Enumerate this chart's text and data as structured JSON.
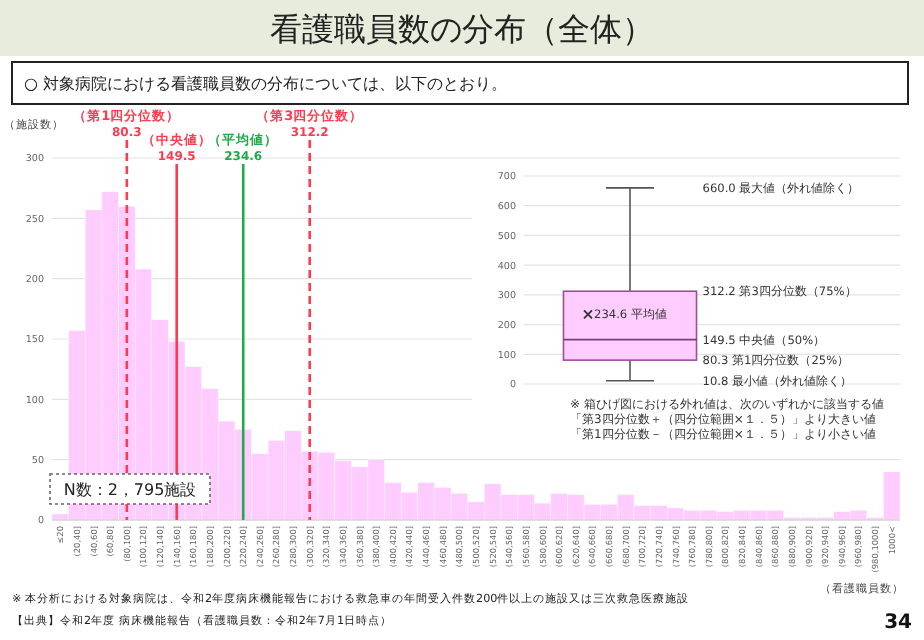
{
  "chart_data": [
    {
      "type": "bar",
      "title": "看護職員数の分布（全体）",
      "subtitle": "○ 対象病院における看護職員数の分布については、以下のとおり。",
      "ylabel": "（施設数）",
      "xlabel": "（看護職員数）",
      "color": "#ffccff",
      "values": [
        5,
        157,
        257,
        272,
        260,
        208,
        166,
        148,
        127,
        109,
        82,
        75,
        55,
        66,
        74,
        57,
        56,
        49,
        44,
        50,
        31,
        23,
        31,
        27,
        22,
        15,
        30,
        21,
        21,
        14,
        22,
        21,
        13,
        13,
        21,
        12,
        12,
        10,
        8,
        8,
        7,
        8,
        8,
        8,
        2,
        2,
        2,
        7,
        8,
        2,
        40
      ],
      "categories": [
        "≤20",
        "(20,40]",
        "(40,60]",
        "(60,80]",
        "(80,100]",
        "(100,120]",
        "(120,140]",
        "(140,160]",
        "(160,180]",
        "(180,200]",
        "(200,220]",
        "(220,240]",
        "(240,260]",
        "(260,280]",
        "(280,300]",
        "(300,320]",
        "(320,340]",
        "(340,360]",
        "(360,380]",
        "(380,400]",
        "(400,420]",
        "(420,440]",
        "(440,460]",
        "(460,480]",
        "(480,500]",
        "(500,520]",
        "(520,540]",
        "(540,560]",
        "(560,580]",
        "(580,600]",
        "(600,620]",
        "(620,640]",
        "(640,660]",
        "(660,680]",
        "(680,700]",
        "(700,720]",
        "(720,740]",
        "(740,760]",
        "(760,780]",
        "(780,800]",
        "(800,820]",
        "(820,840]",
        "(840,860]",
        "(860,880]",
        "(880,900]",
        "(900,920]",
        "(920,940]",
        "(940,960]",
        "(960,980]",
        "(980,1000]",
        "1000<"
      ],
      "ylim": [
        0,
        300
      ],
      "yticks": [
        0,
        50,
        100,
        150,
        200,
        250,
        300
      ],
      "grid": "y",
      "ref_lines": [
        {
          "axis": "x",
          "value": "(80,100]",
          "label": "（第1四分位数）\n80.3",
          "color": "#ff3b4e",
          "line_style": "dashed"
        },
        {
          "axis": "x",
          "value": "(140,160]",
          "label": "（中央値）\n149.5",
          "color": "#ff3b4e",
          "line_style": "solid"
        },
        {
          "axis": "x",
          "value": "(220,240]",
          "label": "（平均値）\n234.6",
          "color": "#22aa4a",
          "line_style": "solid"
        },
        {
          "axis": "x",
          "value": "(300,320]",
          "label": "（第3四分位数）\n312.2",
          "color": "#ff3b4e",
          "line_style": "dashed"
        }
      ],
      "annotations": [
        "N数：2，795施設",
        "※ 本分析における対象病院は、令和2年度病床機能報告における救急車の年間受入件数200件以上の施設又は三次救急医療施設",
        "【出典】令和2年度 病床機能報告（看護職員数：令和2年7月1日時点）",
        "34"
      ]
    },
    {
      "type": "box",
      "categories": [
        null
      ],
      "color": "#ffccff",
      "marker": "cross",
      "ylim": [
        0,
        700
      ],
      "yticks": [
        0,
        100,
        200,
        300,
        400,
        500,
        600,
        700
      ],
      "grid": "y",
      "boxes": [
        {
          "low": 10.8,
          "q1": 80.3,
          "median": 149.5,
          "q3": 312.2,
          "high": 660.0,
          "mean": 234.6
        }
      ],
      "annotations": [
        "660.0 最大値（外れ値除く）",
        "312.2 第3四分位数（75%）",
        "234.6 平均値",
        "149.5 中央値（50%）",
        "80.3 第1四分位数（25%）",
        "10.8 最小値（外れ値除く）",
        "※ 箱ひげ図における外れ値は、次のいずれかに該当する値",
        "「第3四分位数＋（四分位範囲×１．５）」より大きい値",
        "「第1四分位数－（四分位範囲×１．５）」より小さい値"
      ]
    }
  ]
}
